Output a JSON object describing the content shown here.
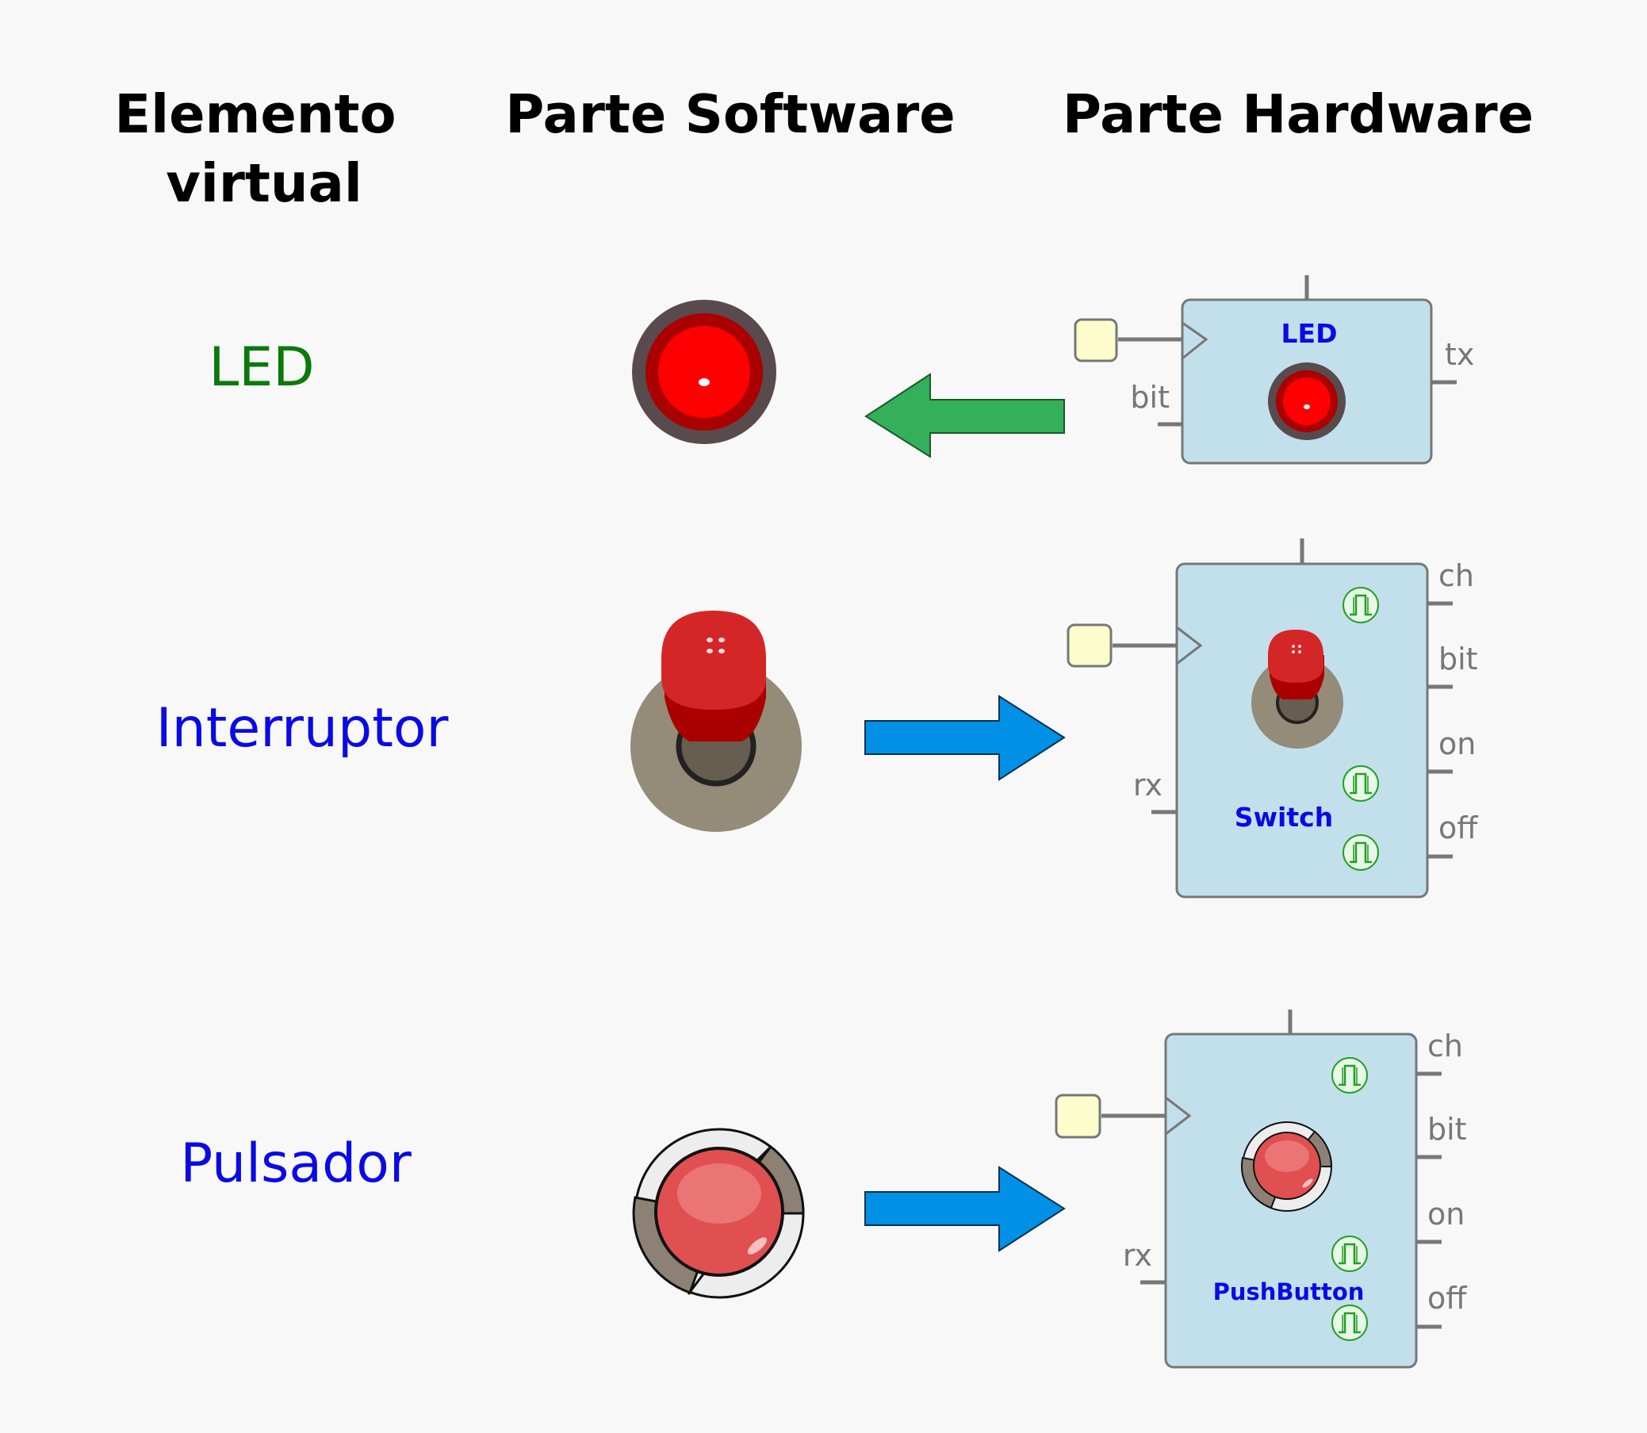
{
  "headers": {
    "element_line1": "Elemento",
    "element_line2": "virtual",
    "software": "Parte Software",
    "hardware": "Parte Hardware"
  },
  "rows": [
    {
      "label": "LED",
      "label_color": "#0a7a0a",
      "block_title": "LED",
      "pins_left": [
        "bit"
      ],
      "pins_right": [
        "tx"
      ],
      "arrow_direction": "left",
      "arrow_color": "#34af5a"
    },
    {
      "label": "Interruptor",
      "label_color": "#0a0ae6",
      "block_title": "Switch",
      "pins_left": [
        "rx"
      ],
      "pins_right": [
        "ch",
        "bit",
        "on",
        "off"
      ],
      "arrow_direction": "right",
      "arrow_color": "#0090e6"
    },
    {
      "label": "Pulsador",
      "label_color": "#0a0ae6",
      "block_title": "PushButton",
      "pins_left": [
        "rx"
      ],
      "pins_right": [
        "ch",
        "bit",
        "on",
        "off"
      ],
      "arrow_direction": "right",
      "arrow_color": "#0090e6"
    }
  ],
  "colors": {
    "block_fill": "#c2e0eb",
    "block_stroke": "#777777",
    "pin_label": "#777777",
    "block_title": "#0a0ae6",
    "led_red": "#ff0000",
    "button_red": "#e05050"
  },
  "icons": [
    "led-icon",
    "toggle-switch-icon",
    "push-button-icon",
    "pulse-icon",
    "clock-triangle-icon"
  ]
}
